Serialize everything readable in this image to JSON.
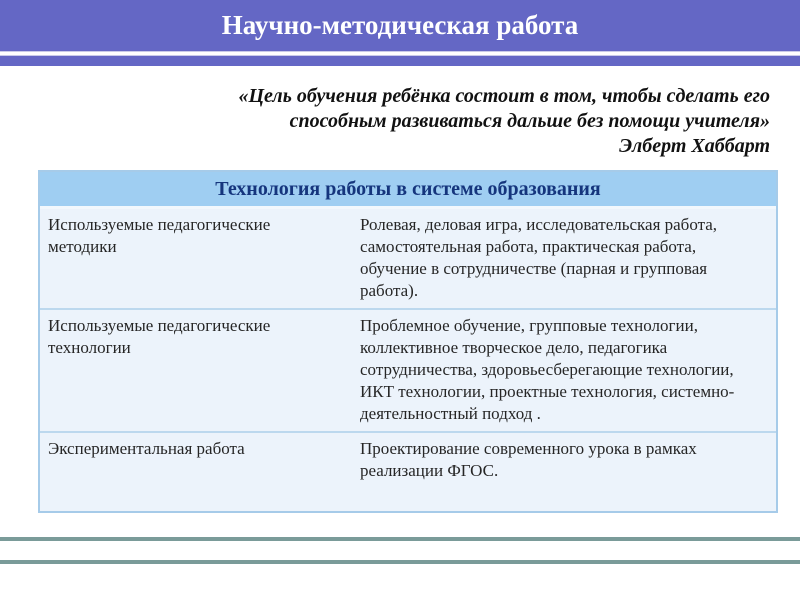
{
  "slide": {
    "title": "Научно-методическая работа",
    "quote": {
      "line1": "«Цель обучения ребёнка состоит в том, чтобы сделать его",
      "line2": "способным развиваться дальше без помощи учителя»",
      "attribution": "Элберт Хаббарт"
    },
    "table": {
      "header": "Технология работы в системе образования",
      "rows": [
        {
          "label": "Используемые педагогические методики",
          "content": "Ролевая, деловая игра, исследовательская работа, самостоятельная работа, практическая работа, обучение в сотрудничестве (парная и групповая работа)."
        },
        {
          "label": "Используемые педагогические технологии",
          "content": "Проблемное обучение, групповые технологии, коллективное творческое дело, педагогика сотрудничества, здоровьесберегающие технологии, ИКТ технологии, проектные технология, системно-деятельностный подход ."
        },
        {
          "label": "Экспериментальная работа",
          "content": "Проектирование современного урока в рамках реализации ФГОС."
        }
      ]
    },
    "colors": {
      "banner": "#6467c5",
      "table_header_bg": "#9fcef2",
      "table_header_text": "#15357d",
      "row_bg": "#ecf3fb",
      "row_separator": "#bcd8ee",
      "table_border": "#a6cbe9",
      "body_text": "#262626",
      "bottom_bar_border": "#7a9b99"
    }
  }
}
